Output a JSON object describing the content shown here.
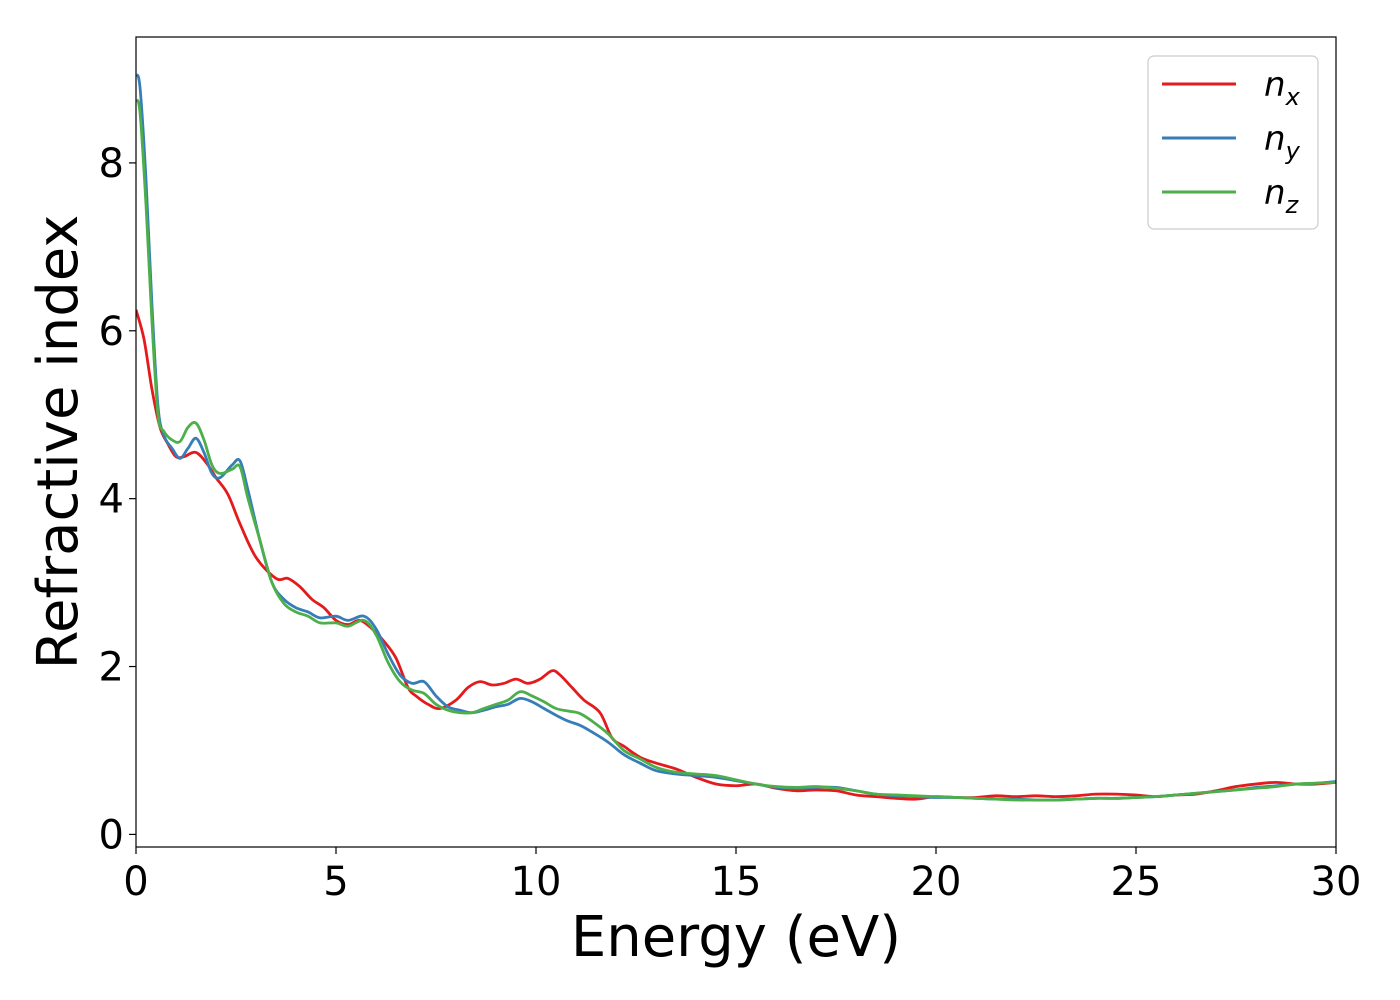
{
  "chart_data": {
    "type": "line",
    "title": "",
    "xlabel": "Energy (eV)",
    "ylabel": "Refractive index",
    "xlim": [
      0,
      30
    ],
    "ylim": [
      -0.15,
      9.5
    ],
    "xticks": [
      0,
      5,
      10,
      15,
      20,
      25,
      30
    ],
    "yticks": [
      0,
      2,
      4,
      6,
      8
    ],
    "grid": false,
    "legend_position": "top-right",
    "series": [
      {
        "name": "n_x",
        "label_base": "n",
        "label_sub": "x",
        "color": "#e41a1c",
        "x": [
          0,
          0.2,
          0.4,
          0.6,
          0.8,
          1.0,
          1.2,
          1.5,
          1.8,
          2.0,
          2.3,
          2.6,
          3.0,
          3.5,
          3.8,
          4.1,
          4.4,
          4.7,
          5.0,
          5.3,
          5.6,
          5.9,
          6.2,
          6.5,
          6.8,
          7.0,
          7.3,
          7.6,
          8.0,
          8.3,
          8.6,
          8.9,
          9.2,
          9.5,
          9.8,
          10.1,
          10.4,
          10.6,
          10.9,
          11.2,
          11.6,
          11.9,
          12.2,
          12.6,
          13.0,
          13.5,
          14.0,
          14.5,
          15.0,
          15.5,
          16.0,
          16.5,
          17.0,
          17.5,
          18.0,
          18.5,
          19.0,
          19.5,
          20.0,
          20.5,
          21.0,
          21.5,
          22.0,
          22.5,
          23.0,
          23.5,
          24.0,
          24.5,
          25.0,
          25.5,
          26.0,
          26.5,
          27.0,
          27.5,
          28.0,
          28.5,
          29.0,
          29.5,
          30.0
        ],
        "y": [
          6.25,
          5.9,
          5.3,
          4.85,
          4.65,
          4.5,
          4.5,
          4.55,
          4.4,
          4.25,
          4.05,
          3.7,
          3.3,
          3.05,
          3.05,
          2.95,
          2.8,
          2.7,
          2.55,
          2.5,
          2.55,
          2.45,
          2.3,
          2.1,
          1.75,
          1.65,
          1.55,
          1.5,
          1.6,
          1.75,
          1.82,
          1.78,
          1.8,
          1.85,
          1.8,
          1.85,
          1.95,
          1.9,
          1.75,
          1.6,
          1.45,
          1.15,
          1.05,
          0.92,
          0.85,
          0.78,
          0.68,
          0.6,
          0.58,
          0.6,
          0.55,
          0.52,
          0.53,
          0.52,
          0.47,
          0.45,
          0.43,
          0.42,
          0.45,
          0.44,
          0.44,
          0.46,
          0.45,
          0.46,
          0.45,
          0.46,
          0.48,
          0.48,
          0.47,
          0.45,
          0.47,
          0.48,
          0.52,
          0.57,
          0.6,
          0.62,
          0.6,
          0.6,
          0.62
        ]
      },
      {
        "name": "n_y",
        "label_base": "n",
        "label_sub": "y",
        "color": "#377eb8",
        "x": [
          0,
          0.1,
          0.25,
          0.4,
          0.55,
          0.7,
          0.9,
          1.1,
          1.3,
          1.5,
          1.7,
          1.9,
          2.1,
          2.4,
          2.6,
          2.8,
          3.1,
          3.4,
          3.7,
          4.0,
          4.3,
          4.6,
          5.0,
          5.3,
          5.7,
          6.0,
          6.3,
          6.6,
          6.9,
          7.2,
          7.5,
          7.8,
          8.1,
          8.4,
          8.7,
          9.0,
          9.3,
          9.6,
          9.9,
          10.2,
          10.5,
          10.8,
          11.1,
          11.4,
          11.8,
          12.2,
          12.6,
          13.0,
          13.5,
          14.0,
          14.5,
          15.0,
          15.5,
          16.0,
          16.5,
          17.0,
          17.5,
          18.0,
          18.5,
          19.0,
          19.5,
          20.0,
          20.5,
          21.0,
          21.5,
          22.0,
          22.5,
          23.0,
          23.5,
          24.0,
          24.5,
          25.0,
          25.5,
          26.0,
          26.5,
          27.0,
          27.5,
          28.0,
          28.5,
          29.0,
          29.5,
          30.0
        ],
        "y": [
          9.05,
          8.9,
          7.8,
          6.3,
          5.1,
          4.75,
          4.6,
          4.48,
          4.6,
          4.72,
          4.55,
          4.3,
          4.25,
          4.4,
          4.45,
          4.1,
          3.5,
          3.0,
          2.8,
          2.7,
          2.65,
          2.58,
          2.6,
          2.55,
          2.6,
          2.45,
          2.15,
          1.9,
          1.8,
          1.82,
          1.65,
          1.52,
          1.48,
          1.45,
          1.48,
          1.52,
          1.55,
          1.62,
          1.58,
          1.5,
          1.42,
          1.35,
          1.3,
          1.22,
          1.1,
          0.95,
          0.85,
          0.76,
          0.72,
          0.7,
          0.68,
          0.64,
          0.6,
          0.56,
          0.55,
          0.56,
          0.56,
          0.52,
          0.48,
          0.46,
          0.45,
          0.44,
          0.44,
          0.43,
          0.42,
          0.42,
          0.41,
          0.41,
          0.42,
          0.43,
          0.43,
          0.44,
          0.45,
          0.47,
          0.49,
          0.51,
          0.53,
          0.56,
          0.58,
          0.6,
          0.61,
          0.63
        ]
      },
      {
        "name": "n_z",
        "label_base": "n",
        "label_sub": "z",
        "color": "#4daf4a",
        "x": [
          0,
          0.1,
          0.25,
          0.4,
          0.55,
          0.7,
          0.9,
          1.1,
          1.3,
          1.5,
          1.7,
          1.9,
          2.1,
          2.4,
          2.6,
          2.8,
          3.1,
          3.4,
          3.7,
          4.0,
          4.3,
          4.6,
          5.0,
          5.3,
          5.7,
          6.0,
          6.3,
          6.6,
          6.9,
          7.2,
          7.5,
          7.8,
          8.1,
          8.4,
          8.7,
          9.0,
          9.3,
          9.6,
          9.9,
          10.2,
          10.5,
          10.8,
          11.1,
          11.4,
          11.8,
          12.2,
          12.6,
          13.0,
          13.5,
          14.0,
          14.5,
          15.0,
          15.5,
          16.0,
          16.5,
          17.0,
          17.5,
          18.0,
          18.5,
          19.0,
          19.5,
          20.0,
          20.5,
          21.0,
          21.5,
          22.0,
          22.5,
          23.0,
          23.5,
          24.0,
          24.5,
          25.0,
          25.5,
          26.0,
          26.5,
          27.0,
          27.5,
          28.0,
          28.5,
          29.0,
          29.5,
          30.0
        ],
        "y": [
          8.75,
          8.6,
          7.5,
          6.1,
          5.0,
          4.8,
          4.7,
          4.68,
          4.85,
          4.9,
          4.7,
          4.4,
          4.3,
          4.35,
          4.38,
          4.0,
          3.5,
          3.0,
          2.75,
          2.65,
          2.6,
          2.52,
          2.52,
          2.48,
          2.55,
          2.38,
          2.05,
          1.82,
          1.72,
          1.68,
          1.55,
          1.48,
          1.45,
          1.45,
          1.5,
          1.55,
          1.6,
          1.7,
          1.65,
          1.58,
          1.5,
          1.47,
          1.44,
          1.35,
          1.2,
          1.0,
          0.9,
          0.8,
          0.74,
          0.72,
          0.7,
          0.65,
          0.6,
          0.57,
          0.56,
          0.57,
          0.55,
          0.52,
          0.48,
          0.47,
          0.46,
          0.45,
          0.44,
          0.43,
          0.42,
          0.41,
          0.41,
          0.41,
          0.42,
          0.43,
          0.43,
          0.44,
          0.45,
          0.47,
          0.49,
          0.51,
          0.53,
          0.55,
          0.57,
          0.6,
          0.61,
          0.62
        ]
      }
    ]
  }
}
